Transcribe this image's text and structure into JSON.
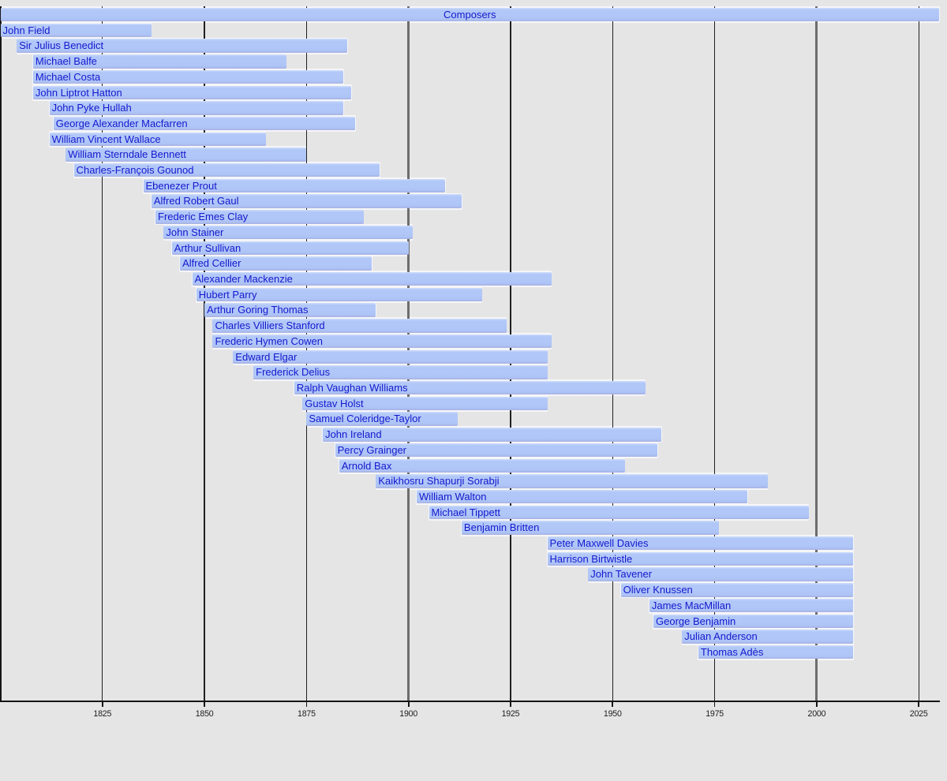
{
  "chart_data": {
    "type": "bar",
    "variant": "horizontal-lifespan-timeline",
    "title": "Composers",
    "xlabel": "",
    "ylabel": "",
    "axis": {
      "min_year": 1800,
      "max_year": 2030,
      "tick_years": [
        1825,
        1850,
        1875,
        1900,
        1925,
        1950,
        1975,
        2000,
        2025
      ],
      "tick_labels": [
        "1825",
        "1850",
        "1875",
        "1900",
        "1925",
        "1950",
        "1975",
        "2000",
        "2025"
      ],
      "thick_grid_years": [
        1900,
        2000
      ],
      "grid": true,
      "legend": false
    },
    "header_bar": {
      "label": "Composers",
      "start": 1800,
      "end": 2030
    },
    "composers": [
      {
        "name": "John Field",
        "start": 1800,
        "end": 1837
      },
      {
        "name": "Sir Julius Benedict",
        "start": 1804,
        "end": 1885
      },
      {
        "name": "Michael Balfe",
        "start": 1808,
        "end": 1870
      },
      {
        "name": "Michael Costa",
        "start": 1808,
        "end": 1884
      },
      {
        "name": "John Liptrot Hatton",
        "start": 1808,
        "end": 1886
      },
      {
        "name": "John Pyke Hullah",
        "start": 1812,
        "end": 1884
      },
      {
        "name": "George Alexander Macfarren",
        "start": 1813,
        "end": 1887
      },
      {
        "name": "William Vincent Wallace",
        "start": 1812,
        "end": 1865
      },
      {
        "name": "William Sterndale Bennett",
        "start": 1816,
        "end": 1875
      },
      {
        "name": "Charles-François Gounod",
        "start": 1818,
        "end": 1893
      },
      {
        "name": "Ebenezer Prout",
        "start": 1835,
        "end": 1909
      },
      {
        "name": "Alfred Robert Gaul",
        "start": 1837,
        "end": 1913
      },
      {
        "name": "Frederic Emes Clay",
        "start": 1838,
        "end": 1889
      },
      {
        "name": "John Stainer",
        "start": 1840,
        "end": 1901
      },
      {
        "name": "Arthur Sullivan",
        "start": 1842,
        "end": 1900
      },
      {
        "name": "Alfred Cellier",
        "start": 1844,
        "end": 1891
      },
      {
        "name": "Alexander Mackenzie",
        "start": 1847,
        "end": 1935
      },
      {
        "name": "Hubert Parry",
        "start": 1848,
        "end": 1918
      },
      {
        "name": "Arthur Goring Thomas",
        "start": 1850,
        "end": 1892
      },
      {
        "name": "Charles Villiers Stanford",
        "start": 1852,
        "end": 1924
      },
      {
        "name": "Frederic Hymen Cowen",
        "start": 1852,
        "end": 1935
      },
      {
        "name": "Edward Elgar",
        "start": 1857,
        "end": 1934
      },
      {
        "name": "Frederick Delius",
        "start": 1862,
        "end": 1934
      },
      {
        "name": "Ralph Vaughan Williams",
        "start": 1872,
        "end": 1958
      },
      {
        "name": "Gustav Holst",
        "start": 1874,
        "end": 1934
      },
      {
        "name": "Samuel Coleridge-Taylor",
        "start": 1875,
        "end": 1912
      },
      {
        "name": "John Ireland",
        "start": 1879,
        "end": 1962
      },
      {
        "name": "Percy Grainger",
        "start": 1882,
        "end": 1961
      },
      {
        "name": "Arnold Bax",
        "start": 1883,
        "end": 1953
      },
      {
        "name": "Kaikhosru Shapurji Sorabji",
        "start": 1892,
        "end": 1988
      },
      {
        "name": "William Walton",
        "start": 1902,
        "end": 1983
      },
      {
        "name": "Michael Tippett",
        "start": 1905,
        "end": 1998
      },
      {
        "name": "Benjamin Britten",
        "start": 1913,
        "end": 1976
      },
      {
        "name": "Peter Maxwell Davies",
        "start": 1934,
        "end": 2009
      },
      {
        "name": "Harrison Birtwistle",
        "start": 1934,
        "end": 2009
      },
      {
        "name": "John Tavener",
        "start": 1944,
        "end": 2009
      },
      {
        "name": "Oliver Knussen",
        "start": 1952,
        "end": 2009
      },
      {
        "name": "James MacMillan",
        "start": 1959,
        "end": 2009
      },
      {
        "name": "George Benjamin",
        "start": 1960,
        "end": 2009
      },
      {
        "name": "Julian Anderson",
        "start": 1967,
        "end": 2009
      },
      {
        "name": "Thomas Adès",
        "start": 1971,
        "end": 2009
      }
    ]
  },
  "colors": {
    "background": "#e6e5e6",
    "bar_fill": "#b1c7f8",
    "bar_label_text": "#1418cd",
    "grid_minor": "#202020",
    "grid_major_thick": "#6d6d6d",
    "axis_line": "#151515",
    "tick_label_text": "#1b1b1b",
    "bar_gap_halo": "#f6f6f8"
  }
}
